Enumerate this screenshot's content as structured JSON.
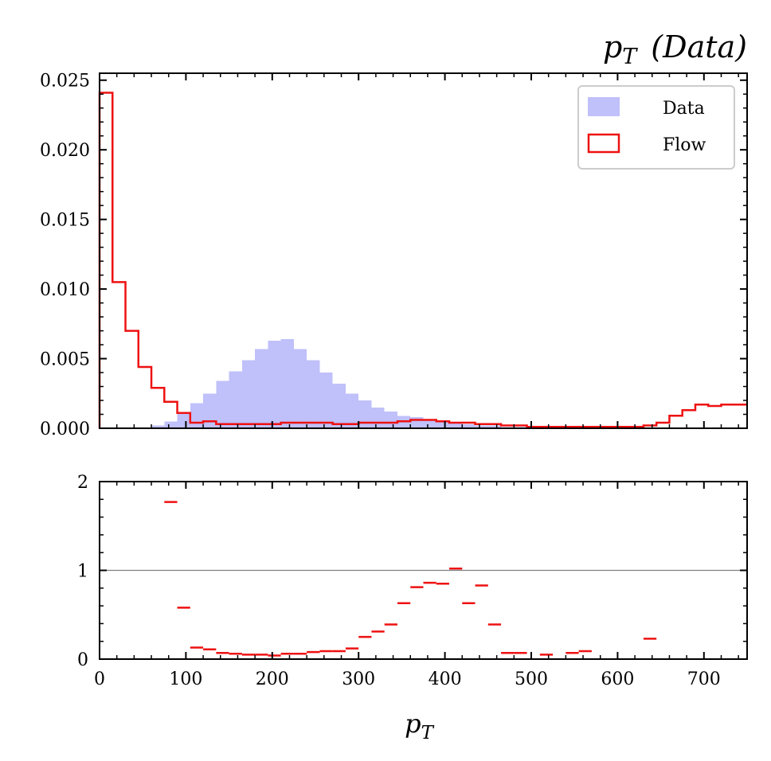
{
  "chart_data": [
    {
      "panel": "main",
      "type": "histogram",
      "title_main": "p",
      "title_sub": "T",
      "title_rest": "(Data)",
      "xlim": [
        0,
        750
      ],
      "ylim": [
        0,
        0.0255
      ],
      "yticks": [
        "0.000",
        "0.005",
        "0.010",
        "0.015",
        "0.020",
        "0.025"
      ],
      "ytick_values": [
        0,
        0.005,
        0.01,
        0.015,
        0.02,
        0.025
      ],
      "bin_edges": [
        0,
        15,
        30,
        45,
        60,
        75,
        90,
        105,
        120,
        135,
        150,
        165,
        180,
        195,
        210,
        225,
        240,
        255,
        270,
        285,
        300,
        315,
        330,
        345,
        360,
        375,
        390,
        405,
        420,
        435,
        450,
        465,
        480,
        495,
        510,
        525,
        540,
        555,
        570,
        585,
        600,
        615,
        630,
        645,
        660,
        675,
        690,
        705,
        720,
        735,
        750
      ],
      "legend": {
        "placement": "top-right",
        "entries": [
          "Data",
          "Flow"
        ]
      },
      "series": [
        {
          "name": "Data",
          "style": "filled",
          "color": "#c0c0fa",
          "values": [
            0,
            0,
            0,
            0,
            0.0002,
            0.0005,
            0.0011,
            0.0018,
            0.0025,
            0.0034,
            0.0041,
            0.0049,
            0.0057,
            0.0063,
            0.0064,
            0.0057,
            0.0049,
            0.004,
            0.0032,
            0.0025,
            0.002,
            0.0015,
            0.0012,
            0.0009,
            0.0008,
            0.0006,
            0.0005,
            0.0004,
            0.0003,
            0.0002,
            0.0002,
            0.0001,
            0.0001,
            0,
            0,
            0,
            0,
            0,
            0,
            0,
            0,
            0,
            0,
            0,
            0,
            0,
            0,
            0,
            0,
            0
          ]
        },
        {
          "name": "Flow",
          "style": "step",
          "color": "#ee1111",
          "values": [
            0.0241,
            0.0105,
            0.007,
            0.0044,
            0.0029,
            0.0019,
            0.0011,
            0.0004,
            0.0005,
            0.0003,
            0.0003,
            0.0003,
            0.0003,
            0.0003,
            0.0004,
            0.0004,
            0.0004,
            0.0004,
            0.0003,
            0.0003,
            0.0004,
            0.0004,
            0.0004,
            0.0005,
            0.0006,
            0.0006,
            0.0005,
            0.0004,
            0.0004,
            0.0003,
            0.0003,
            0.0002,
            0.0002,
            0.0001,
            0.0001,
            0.0001,
            0.0001,
            0.0001,
            0.0001,
            0.0001,
            0.0001,
            0.0001,
            0.0002,
            0.0004,
            0.0009,
            0.0013,
            0.0017,
            0.0016,
            0.0017,
            0.0017
          ]
        }
      ]
    },
    {
      "panel": "ratio",
      "type": "scatter",
      "xlim": [
        0,
        750
      ],
      "ylim": [
        0,
        2
      ],
      "yticks": [
        "0",
        "1",
        "2"
      ],
      "ytick_values": [
        0,
        1,
        2
      ],
      "xticks": [
        "0",
        "100",
        "200",
        "300",
        "400",
        "500",
        "600",
        "700"
      ],
      "xtick_values": [
        0,
        100,
        200,
        300,
        400,
        500,
        600,
        700
      ],
      "xlabel_main": "p",
      "xlabel_sub": "T",
      "reference_line": 1,
      "point_color": "#ee1111",
      "bin_width": 15,
      "points": [
        [
          82.5,
          1.77
        ],
        [
          97.5,
          0.58
        ],
        [
          112.5,
          0.13
        ],
        [
          127.5,
          0.11
        ],
        [
          142.5,
          0.07
        ],
        [
          157.5,
          0.06
        ],
        [
          172.5,
          0.05
        ],
        [
          187.5,
          0.05
        ],
        [
          202.5,
          0.04
        ],
        [
          217.5,
          0.06
        ],
        [
          232.5,
          0.06
        ],
        [
          247.5,
          0.08
        ],
        [
          262.5,
          0.09
        ],
        [
          277.5,
          0.09
        ],
        [
          292.5,
          0.12
        ],
        [
          307.5,
          0.25
        ],
        [
          322.5,
          0.31
        ],
        [
          337.5,
          0.39
        ],
        [
          352.5,
          0.63
        ],
        [
          367.5,
          0.81
        ],
        [
          382.5,
          0.86
        ],
        [
          397.5,
          0.85
        ],
        [
          412.5,
          1.02
        ],
        [
          427.5,
          0.63
        ],
        [
          442.5,
          0.83
        ],
        [
          457.5,
          0.39
        ],
        [
          472.5,
          0.07
        ],
        [
          487.5,
          0.07
        ],
        [
          517.5,
          0.05
        ],
        [
          547.5,
          0.07
        ],
        [
          562.5,
          0.09
        ],
        [
          637.5,
          0.23
        ]
      ]
    }
  ]
}
